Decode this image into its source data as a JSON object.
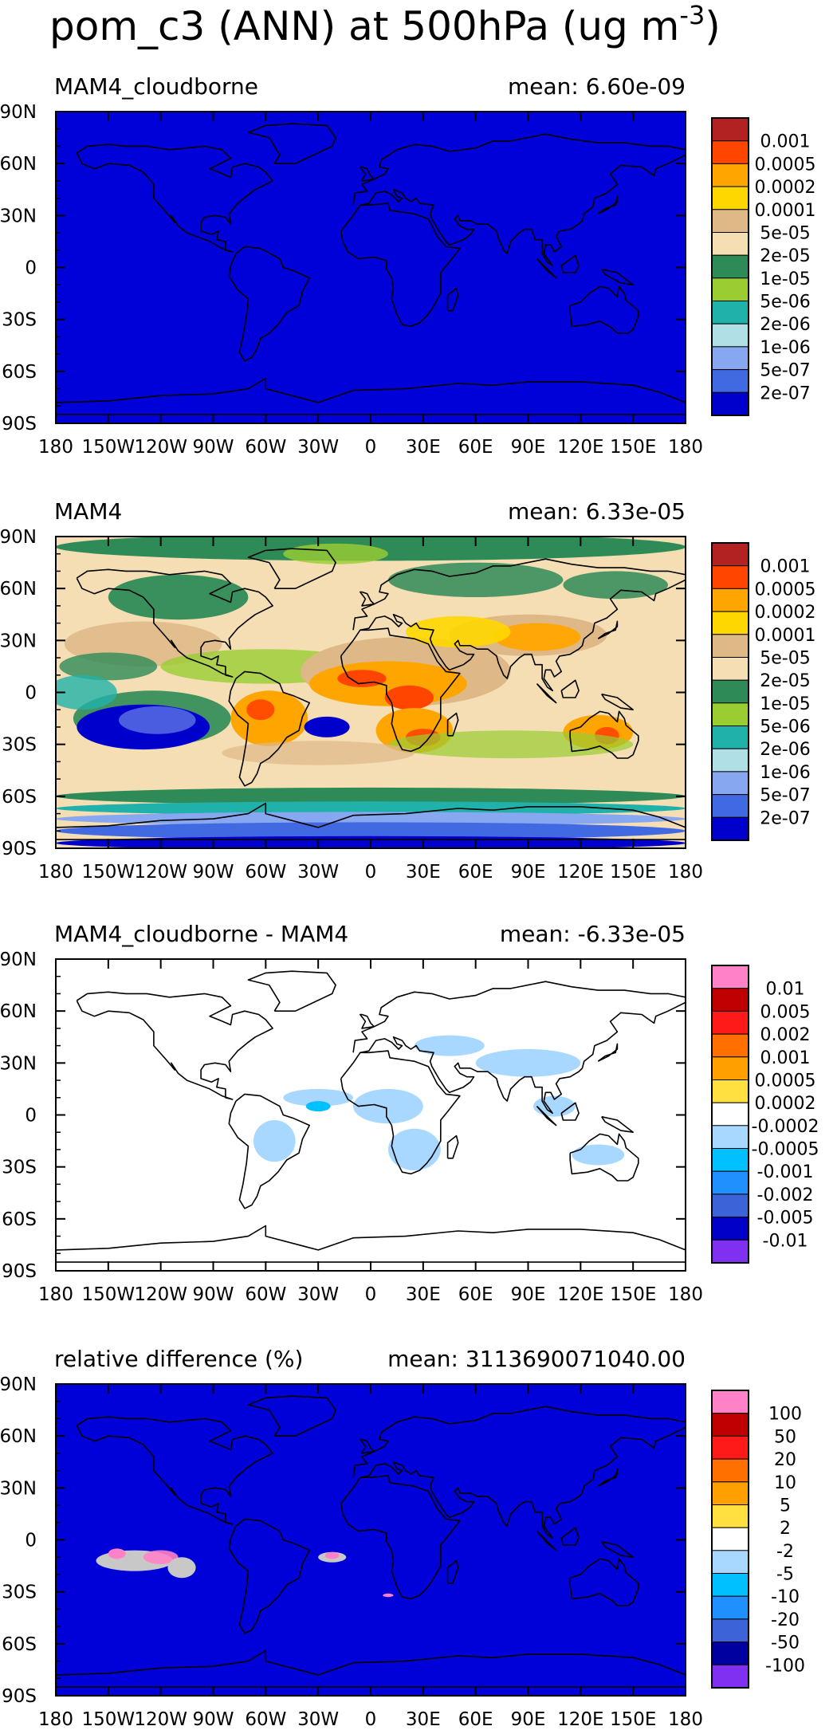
{
  "title": "pom_c3 (ANN) at 500hPa (ug m",
  "title_sup": "-3",
  "title_close": ")",
  "lon_ticks": [
    "180",
    "150W",
    "120W",
    "90W",
    "60W",
    "30W",
    "0",
    "30E",
    "60E",
    "90E",
    "120E",
    "150E",
    "180"
  ],
  "lat_ticks": [
    "90N",
    "60N",
    "30N",
    "0",
    "30S",
    "60S",
    "90S"
  ],
  "panels": [
    {
      "name": "MAM4_cloudborne",
      "mean_label": "mean: 6.60e-09",
      "background": "#0000d8",
      "colorbar": {
        "labels": [
          "0.001",
          "0.0005",
          "0.0002",
          "0.0001",
          "5e-05",
          "2e-05",
          "1e-05",
          "5e-06",
          "2e-06",
          "1e-06",
          "5e-07",
          "2e-07"
        ],
        "colors": [
          "#b22222",
          "#ff4500",
          "#ffa500",
          "#ffd700",
          "#deb887",
          "#f5deb3",
          "#2e8b57",
          "#9acd32",
          "#20b2aa",
          "#b0e0e6",
          "#87a8f0",
          "#4169e1",
          "#0000cd"
        ]
      }
    },
    {
      "name": "MAM4",
      "mean_label": "mean: 6.33e-05",
      "background": "#f5deb3",
      "colorbar": {
        "labels": [
          "0.001",
          "0.0005",
          "0.0002",
          "0.0001",
          "5e-05",
          "2e-05",
          "1e-05",
          "5e-06",
          "2e-06",
          "1e-06",
          "5e-07",
          "2e-07"
        ],
        "colors": [
          "#b22222",
          "#ff4500",
          "#ffa500",
          "#ffd700",
          "#deb887",
          "#f5deb3",
          "#2e8b57",
          "#9acd32",
          "#20b2aa",
          "#b0e0e6",
          "#87a8f0",
          "#4169e1",
          "#0000cd"
        ]
      }
    },
    {
      "name": "MAM4_cloudborne - MAM4",
      "mean_label": "mean: -6.33e-05",
      "background": "#ffffff",
      "colorbar": {
        "labels": [
          "0.01",
          "0.005",
          "0.002",
          "0.001",
          "0.0005",
          "0.0002",
          "-0.0002",
          "-0.0005",
          "-0.001",
          "-0.002",
          "-0.005",
          "-0.01"
        ],
        "colors": [
          "#ff82c8",
          "#c00000",
          "#ff1a1a",
          "#ff7000",
          "#ffa000",
          "#ffe040",
          "#ffffff",
          "#a8d8ff",
          "#00c0ff",
          "#2090ff",
          "#3c64d8",
          "#0000c8",
          "#8030f0"
        ]
      }
    },
    {
      "name": "relative difference (%)",
      "mean_label": "mean: 3113690071040.00",
      "background": "#0000d8",
      "colorbar": {
        "labels": [
          "100",
          "50",
          "20",
          "10",
          "5",
          "2",
          "-2",
          "-5",
          "-10",
          "-20",
          "-50",
          "-100"
        ],
        "colors": [
          "#ff82c8",
          "#c00000",
          "#ff1a1a",
          "#ff7000",
          "#ffa000",
          "#ffe040",
          "#ffffff",
          "#a8d8ff",
          "#00c0ff",
          "#2090ff",
          "#3c64d8",
          "#0000a0",
          "#8030f0"
        ]
      }
    }
  ]
}
